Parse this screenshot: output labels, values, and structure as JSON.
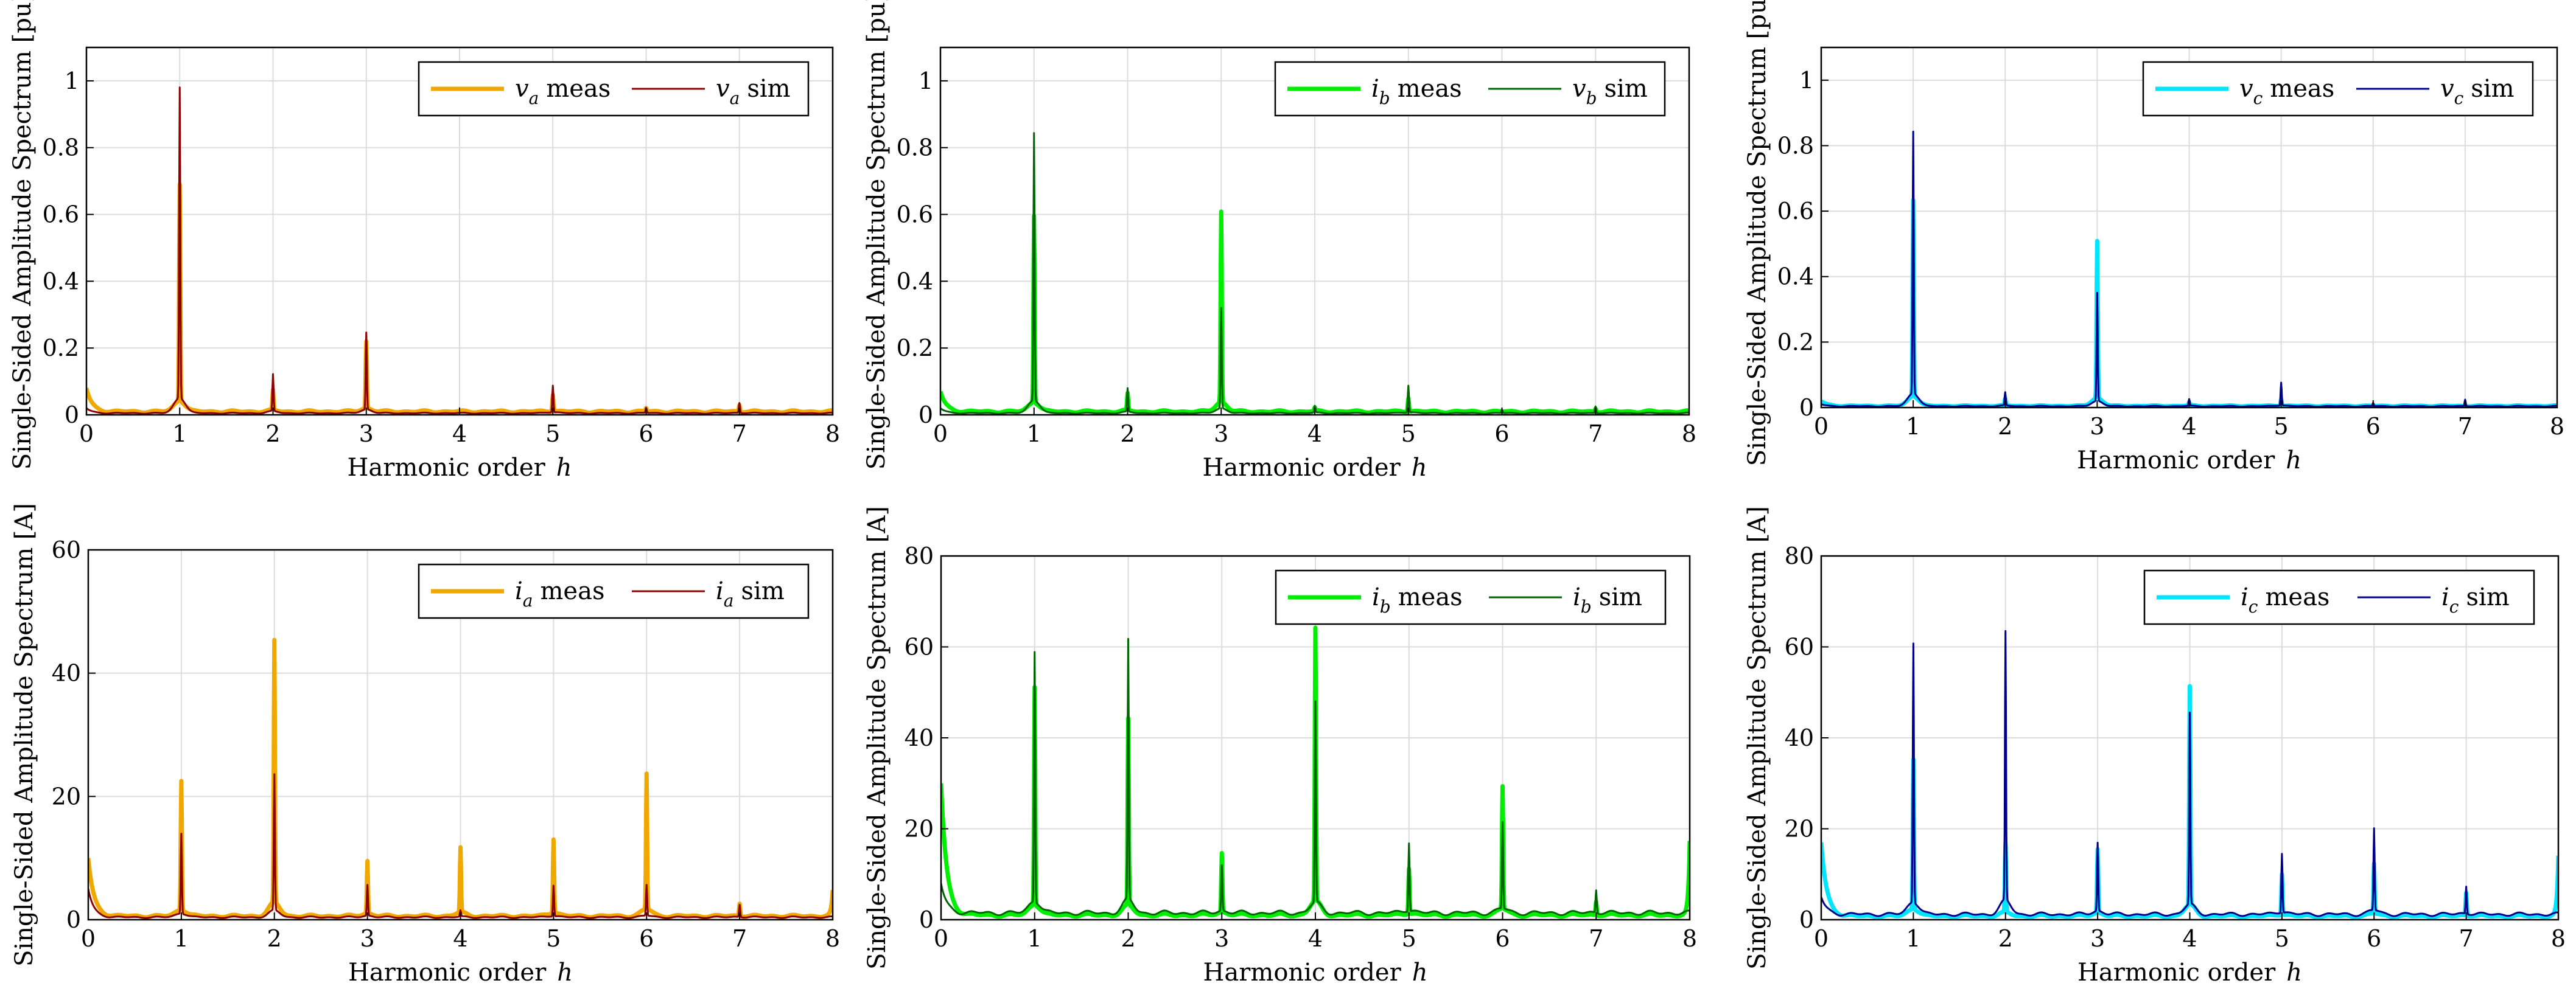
{
  "chart_data": [
    {
      "id": "va",
      "type": "line",
      "ylabel": "Single-Sided Amplitude Spectrum [pu]",
      "xlabel": "Harmonic order",
      "xlabel_symbol": "h",
      "xlim": [
        0,
        8
      ],
      "ylim": [
        0,
        1.1
      ],
      "xticks": [
        "0",
        "1",
        "2",
        "3",
        "4",
        "5",
        "6",
        "7",
        "8"
      ],
      "yticks": [
        {
          "v": 0,
          "t": "0"
        },
        {
          "v": 0.2,
          "t": "0.2"
        },
        {
          "v": 0.4,
          "t": "0.4"
        },
        {
          "v": 0.6,
          "t": "0.6"
        },
        {
          "v": 0.8,
          "t": "0.8"
        },
        {
          "v": 1,
          "t": "1"
        }
      ],
      "grid": true,
      "legend_position": "top-right",
      "series": [
        {
          "name": "meas",
          "symbol": "v",
          "sub": "a",
          "color": "#f0a800",
          "width": 7,
          "baseline": 0.01,
          "start": 0.08,
          "peaks": [
            [
              1,
              0.65
            ],
            [
              2,
              0.06
            ],
            [
              3,
              0.2
            ],
            [
              5,
              0.05
            ],
            [
              6,
              0.01
            ],
            [
              7,
              0.02
            ]
          ]
        },
        {
          "name": "sim",
          "symbol": "v",
          "sub": "a",
          "color": "#8b0000",
          "width": 3,
          "baseline": 0.005,
          "start": 0.02,
          "peaks": [
            [
              1,
              0.93
            ],
            [
              2,
              0.11
            ],
            [
              3,
              0.23
            ],
            [
              5,
              0.08
            ],
            [
              6,
              0.015
            ],
            [
              7,
              0.03
            ]
          ]
        }
      ]
    },
    {
      "id": "vb",
      "type": "line",
      "ylabel": "Single-Sided Amplitude Spectrum [pu]",
      "xlabel": "Harmonic order",
      "xlabel_symbol": "h",
      "xlim": [
        0,
        8
      ],
      "ylim": [
        0,
        1.1
      ],
      "xticks": [
        "0",
        "1",
        "2",
        "3",
        "4",
        "5",
        "6",
        "7",
        "8"
      ],
      "yticks": [
        {
          "v": 0,
          "t": "0"
        },
        {
          "v": 0.2,
          "t": "0.2"
        },
        {
          "v": 0.4,
          "t": "0.4"
        },
        {
          "v": 0.6,
          "t": "0.6"
        },
        {
          "v": 0.8,
          "t": "0.8"
        },
        {
          "v": 1,
          "t": "1"
        }
      ],
      "grid": true,
      "legend_position": "top-right",
      "series": [
        {
          "name": "meas",
          "symbol": "i",
          "sub": "b",
          "color": "#00ee00",
          "width": 7,
          "baseline": 0.01,
          "start": 0.07,
          "peaks": [
            [
              1,
              0.56
            ],
            [
              2,
              0.05
            ],
            [
              3,
              0.57
            ],
            [
              4,
              0.01
            ],
            [
              5,
              0.04
            ],
            [
              7,
              0.01
            ]
          ]
        },
        {
          "name": "sim",
          "symbol": "v",
          "sub": "b",
          "color": "#006400",
          "width": 3,
          "baseline": 0.005,
          "start": 0.02,
          "peaks": [
            [
              1,
              0.8
            ],
            [
              2,
              0.07
            ],
            [
              3,
              0.3
            ],
            [
              4,
              0.02
            ],
            [
              5,
              0.08
            ],
            [
              6,
              0.01
            ],
            [
              7,
              0.02
            ]
          ]
        }
      ]
    },
    {
      "id": "vc",
      "type": "line",
      "ylabel": "Single-Sided Amplitude Spectrum [pu]",
      "xlabel": "Harmonic order",
      "xlabel_symbol": "h",
      "xlim": [
        0,
        8
      ],
      "ylim": [
        0,
        1.1
      ],
      "xticks": [
        "0",
        "1",
        "2",
        "3",
        "4",
        "5",
        "6",
        "7",
        "8"
      ],
      "yticks": [
        {
          "v": 0,
          "t": "0"
        },
        {
          "v": 0.2,
          "t": "0.2"
        },
        {
          "v": 0.4,
          "t": "0.4"
        },
        {
          "v": 0.6,
          "t": "0.6"
        },
        {
          "v": 0.8,
          "t": "0.8"
        },
        {
          "v": 1,
          "t": "1"
        }
      ],
      "grid": true,
      "legend_position": "top-right",
      "series": [
        {
          "name": "meas",
          "symbol": "v",
          "sub": "c",
          "color": "#00e5ff",
          "width": 7,
          "baseline": 0.005,
          "start": 0.02,
          "peaks": [
            [
              1,
              0.6
            ],
            [
              2,
              0.02
            ],
            [
              3,
              0.48
            ],
            [
              4,
              0.01
            ],
            [
              5,
              0.02
            ]
          ]
        },
        {
          "name": "sim",
          "symbol": "v",
          "sub": "c",
          "color": "#00008b",
          "width": 3,
          "baseline": 0.004,
          "start": 0.01,
          "peaks": [
            [
              1,
              0.8
            ],
            [
              2,
              0.04
            ],
            [
              3,
              0.33
            ],
            [
              4,
              0.02
            ],
            [
              5,
              0.07
            ],
            [
              6,
              0.01
            ],
            [
              7,
              0.02
            ]
          ]
        }
      ]
    },
    {
      "id": "ia",
      "type": "line",
      "ylabel": "Single-Sided Amplitude Spectrum [A]",
      "xlabel": "Harmonic order",
      "xlabel_symbol": "h",
      "xlim": [
        0,
        8
      ],
      "ylim": [
        0,
        60
      ],
      "xticks": [
        "0",
        "1",
        "2",
        "3",
        "4",
        "5",
        "6",
        "7",
        "8"
      ],
      "yticks": [
        {
          "v": 0,
          "t": "0"
        },
        {
          "v": 20,
          "t": "20"
        },
        {
          "v": 40,
          "t": "40"
        },
        {
          "v": 60,
          "t": "60"
        }
      ],
      "grid": true,
      "legend_position": "top-right",
      "series": [
        {
          "name": "meas",
          "symbol": "i",
          "sub": "a",
          "color": "#f0a800",
          "width": 7,
          "baseline": 0.6,
          "start": 10,
          "end": 4,
          "peaks": [
            [
              1,
              21
            ],
            [
              2,
              42.5
            ],
            [
              3,
              8.5
            ],
            [
              4,
              10.5
            ],
            [
              5,
              12
            ],
            [
              6,
              22
            ],
            [
              7,
              2
            ]
          ]
        },
        {
          "name": "sim",
          "symbol": "i",
          "sub": "a",
          "color": "#8b0000",
          "width": 3,
          "baseline": 0.4,
          "start": 5,
          "peaks": [
            [
              1,
              13
            ],
            [
              2,
              22
            ],
            [
              3,
              5
            ],
            [
              4,
              1
            ],
            [
              5,
              5
            ],
            [
              6,
              5
            ],
            [
              7,
              2
            ]
          ]
        }
      ]
    },
    {
      "id": "ib",
      "type": "line",
      "ylabel": "Single-Sided Amplitude Spectrum [A]",
      "xlabel": "Harmonic order",
      "xlabel_symbol": "h",
      "xlim": [
        0,
        8
      ],
      "ylim": [
        0,
        80
      ],
      "xticks": [
        "0",
        "1",
        "2",
        "3",
        "4",
        "5",
        "6",
        "7",
        "8"
      ],
      "yticks": [
        {
          "v": 0,
          "t": "0"
        },
        {
          "v": 20,
          "t": "20"
        },
        {
          "v": 40,
          "t": "40"
        },
        {
          "v": 60,
          "t": "60"
        },
        {
          "v": 80,
          "t": "80"
        }
      ],
      "grid": true,
      "legend_position": "top-right",
      "series": [
        {
          "name": "meas",
          "symbol": "i",
          "sub": "b",
          "color": "#00ee00",
          "width": 7,
          "baseline": 1,
          "start": 30,
          "end": 16,
          "peaks": [
            [
              1,
              48
            ],
            [
              2,
              41
            ],
            [
              3,
              13
            ],
            [
              4,
              60
            ],
            [
              5,
              10
            ],
            [
              6,
              27
            ],
            [
              7,
              3
            ]
          ]
        },
        {
          "name": "sim",
          "symbol": "i",
          "sub": "b",
          "color": "#006400",
          "width": 3,
          "baseline": 1.5,
          "start": 8,
          "peaks": [
            [
              1,
              55
            ],
            [
              2,
              57
            ],
            [
              3,
              10
            ],
            [
              4,
              44
            ],
            [
              5,
              15
            ],
            [
              6,
              19
            ],
            [
              7,
              5
            ]
          ]
        }
      ]
    },
    {
      "id": "ic",
      "type": "line",
      "ylabel": "Single-Sided Amplitude Spectrum [A]",
      "xlabel": "Harmonic order",
      "xlabel_symbol": "h",
      "xlim": [
        0,
        8
      ],
      "ylim": [
        0,
        80
      ],
      "xticks": [
        "0",
        "1",
        "2",
        "3",
        "4",
        "5",
        "6",
        "7",
        "8"
      ],
      "yticks": [
        {
          "v": 0,
          "t": "0"
        },
        {
          "v": 20,
          "t": "20"
        },
        {
          "v": 40,
          "t": "40"
        },
        {
          "v": 60,
          "t": "60"
        },
        {
          "v": 80,
          "t": "80"
        }
      ],
      "grid": true,
      "legend_position": "top-right",
      "series": [
        {
          "name": "meas",
          "symbol": "i",
          "sub": "c",
          "color": "#00e5ff",
          "width": 7,
          "baseline": 0.8,
          "start": 17,
          "end": 13,
          "peaks": [
            [
              1,
              33
            ],
            [
              2,
              15
            ],
            [
              3,
              14
            ],
            [
              4,
              48
            ],
            [
              5,
              9
            ],
            [
              6,
              11
            ],
            [
              7,
              5
            ]
          ]
        },
        {
          "name": "sim",
          "symbol": "i",
          "sub": "c",
          "color": "#00008b",
          "width": 3,
          "baseline": 1.2,
          "start": 5,
          "peaks": [
            [
              1,
              57
            ],
            [
              2,
              59
            ],
            [
              3,
              15
            ],
            [
              4,
              42
            ],
            [
              5,
              13
            ],
            [
              6,
              18
            ],
            [
              7,
              6
            ]
          ]
        }
      ]
    }
  ]
}
